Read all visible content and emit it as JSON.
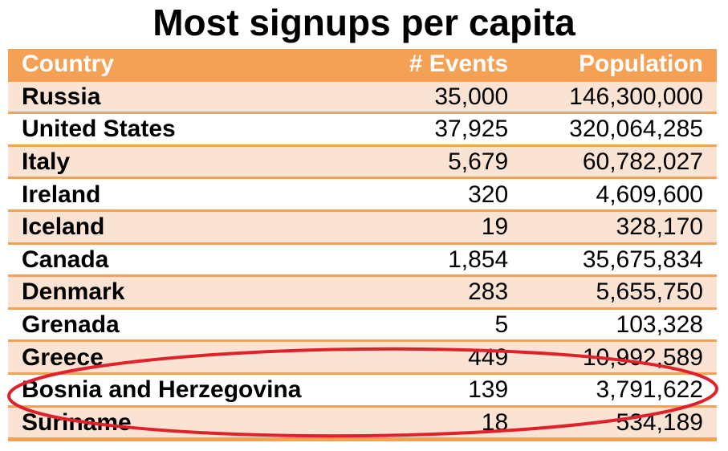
{
  "title": "Most signups per capita",
  "table": {
    "headers": {
      "country": "Country",
      "events": "# Events",
      "population": "Population"
    },
    "rows": [
      {
        "country": "Russia",
        "events": "35,000",
        "population": "146,300,000"
      },
      {
        "country": "United States",
        "events": "37,925",
        "population": "320,064,285"
      },
      {
        "country": "Italy",
        "events": "5,679",
        "population": "60,782,027"
      },
      {
        "country": "Ireland",
        "events": "320",
        "population": "4,609,600"
      },
      {
        "country": "Iceland",
        "events": "19",
        "population": "328,170"
      },
      {
        "country": "Canada",
        "events": "1,854",
        "population": "35,675,834"
      },
      {
        "country": "Denmark",
        "events": "283",
        "population": "5,655,750"
      },
      {
        "country": "Grenada",
        "events": "5",
        "population": "103,328"
      },
      {
        "country": "Greece",
        "events": "449",
        "population": "10,992,589"
      },
      {
        "country": "Bosnia and Herzegovina",
        "events": "139",
        "population": "3,791,622"
      },
      {
        "country": "Suriname",
        "events": "18",
        "population": "534,189"
      }
    ]
  },
  "colors": {
    "header_bg": "#f4a155",
    "row_band": "#fbe3d4",
    "highlight_ellipse": "#e0212b"
  }
}
